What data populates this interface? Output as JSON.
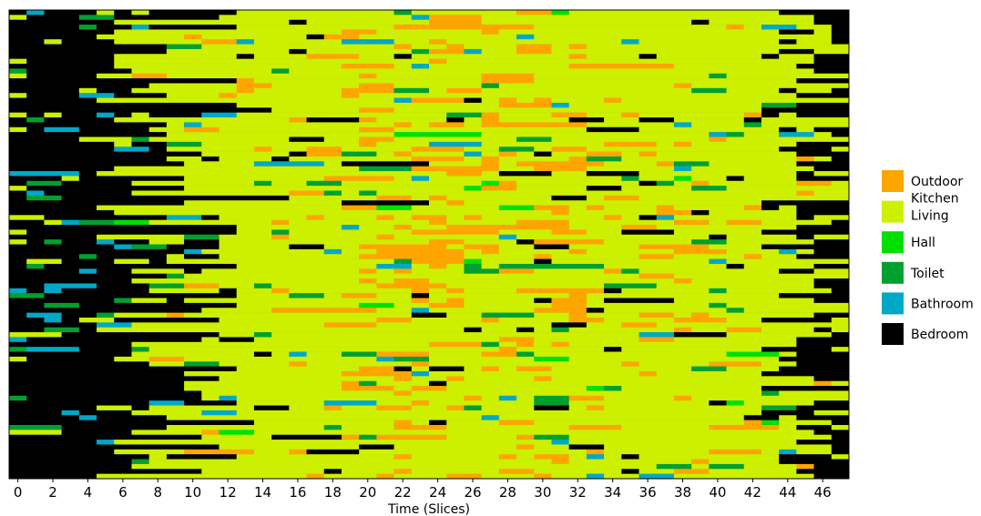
{
  "chart_data": {
    "type": "heatmap",
    "title": "",
    "xlabel": "Time (Slices)",
    "ylabel": "",
    "xlim": [
      -0.5,
      47.5
    ],
    "x_ticks": [
      0,
      2,
      4,
      6,
      8,
      10,
      12,
      14,
      16,
      18,
      20,
      22,
      24,
      26,
      28,
      30,
      32,
      34,
      36,
      38,
      40,
      42,
      44,
      46
    ],
    "n_rows": 96,
    "n_slices": 48,
    "legend_position": "right",
    "categories": [
      {
        "name": "Outdoor",
        "color": "#ffa500"
      },
      {
        "name": "Kitchen\nLiving",
        "color": "#ccf000"
      },
      {
        "name": "Hall",
        "color": "#00e000"
      },
      {
        "name": "Toilet",
        "color": "#00a030"
      },
      {
        "name": "Bathroom",
        "color": "#00a8c8"
      },
      {
        "name": "Bedroom",
        "color": "#000000"
      }
    ],
    "series_values_note_free": true
  }
}
